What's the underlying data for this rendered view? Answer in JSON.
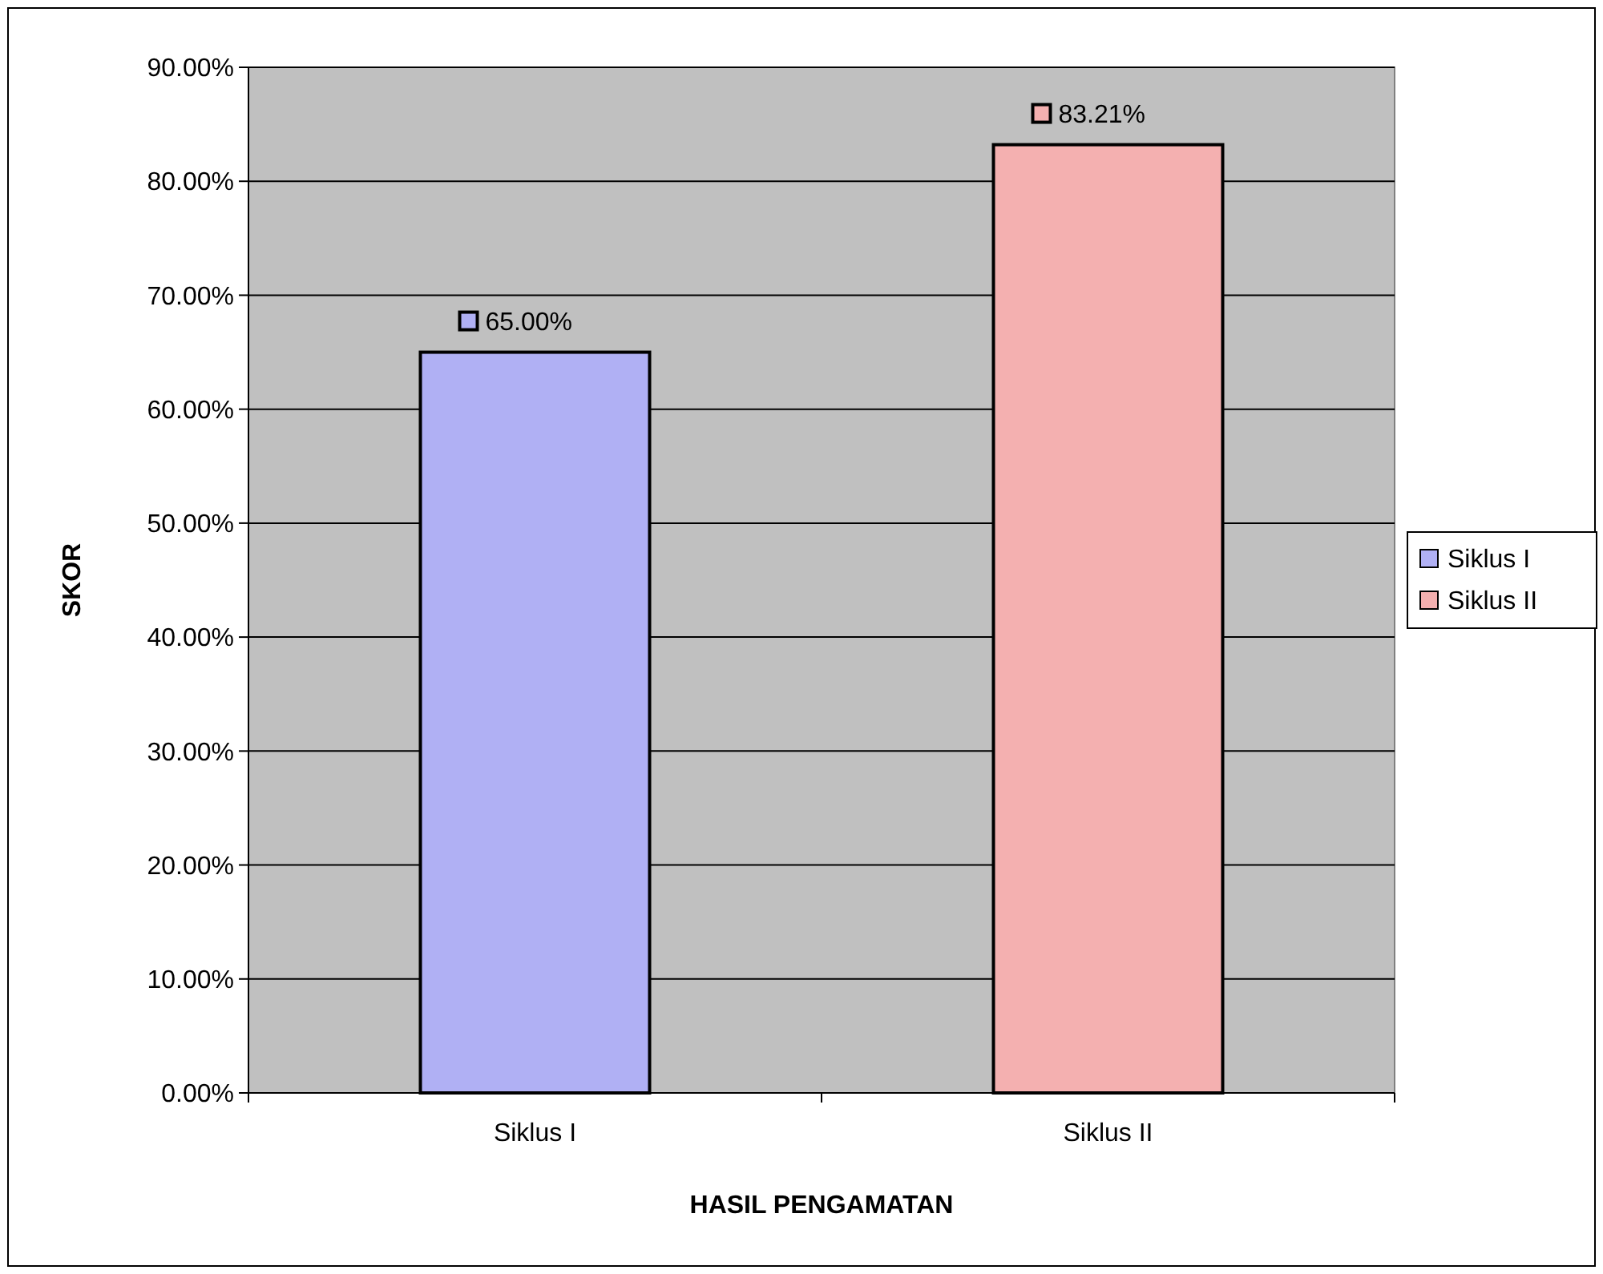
{
  "chart_data": {
    "type": "bar",
    "xlabel": "HASIL PENGAMATAN",
    "ylabel": "SKOR",
    "categories": [
      "Siklus I",
      "Siklus II"
    ],
    "series": [
      {
        "name": "Siklus I",
        "color": "#b0b0f4",
        "values": [
          65,
          null
        ],
        "value_labels": [
          "65.00%",
          null
        ]
      },
      {
        "name": "Siklus II",
        "color": "#f4b0b0",
        "values": [
          null,
          83.21
        ],
        "value_labels": [
          null,
          "83.21%"
        ]
      }
    ],
    "stacked": true,
    "ylim": [
      0,
      90
    ],
    "yticks": [
      {
        "value": 0,
        "label": "0.00%"
      },
      {
        "value": 10,
        "label": "10.00%"
      },
      {
        "value": 20,
        "label": "20.00%"
      },
      {
        "value": 30,
        "label": "30.00%"
      },
      {
        "value": 40,
        "label": "40.00%"
      },
      {
        "value": 50,
        "label": "50.00%"
      },
      {
        "value": 60,
        "label": "60.00%"
      },
      {
        "value": 70,
        "label": "70.00%"
      },
      {
        "value": 80,
        "label": "80.00%"
      },
      {
        "value": 90,
        "label": "90.00%"
      }
    ],
    "grid": "y",
    "legend": "right"
  }
}
